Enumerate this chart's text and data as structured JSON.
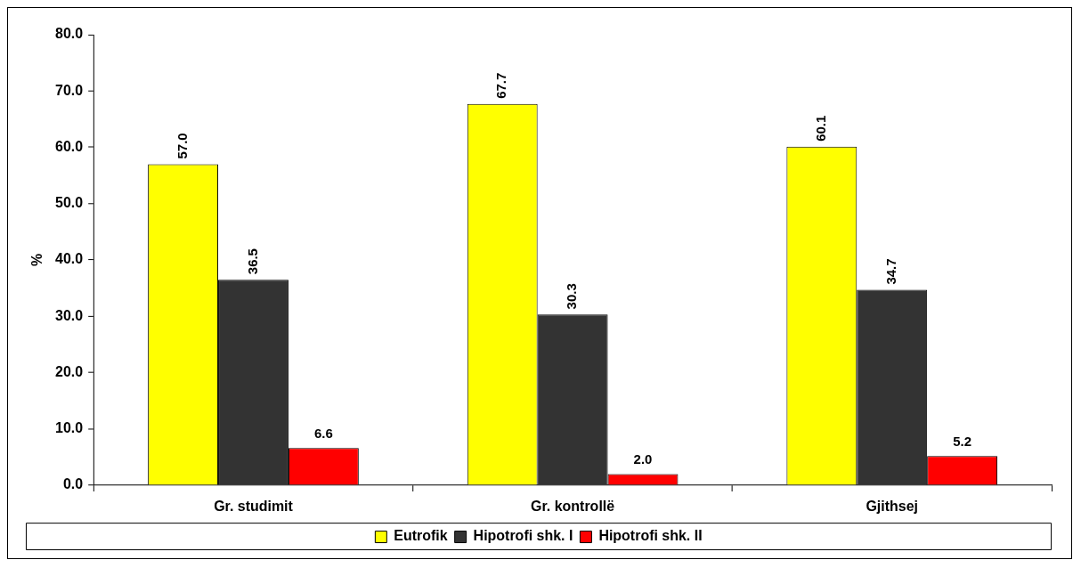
{
  "chart_data": {
    "type": "bar",
    "ylabel": "%",
    "categories": [
      "Gr. studimit",
      "Gr. kontrollë",
      "Gjithsej"
    ],
    "series": [
      {
        "name": "Eutrofik",
        "color": "#ffff00",
        "values": [
          57.0,
          67.7,
          60.1
        ],
        "value_labels": [
          "57.0",
          "67.7",
          "60.1"
        ]
      },
      {
        "name": "Hipotrofi shk. I",
        "color": "#333333",
        "values": [
          36.5,
          30.3,
          34.7
        ],
        "value_labels": [
          "36.5",
          "30.3",
          "34.7"
        ]
      },
      {
        "name": "Hipotrofi shk. II",
        "color": "#ff0000",
        "values": [
          6.6,
          2.0,
          5.2
        ],
        "value_labels": [
          "6.6",
          "2.0",
          "5.2"
        ]
      }
    ],
    "ylim": [
      0,
      80
    ],
    "yticks": [
      {
        "value": 0,
        "label": "0.0"
      },
      {
        "value": 10,
        "label": "10.0"
      },
      {
        "value": 20,
        "label": "20.0"
      },
      {
        "value": 30,
        "label": "30.0"
      },
      {
        "value": 40,
        "label": "40.0"
      },
      {
        "value": 50,
        "label": "50.0"
      },
      {
        "value": 60,
        "label": "60.0"
      },
      {
        "value": 70,
        "label": "70.0"
      },
      {
        "value": 80,
        "label": "80.0"
      }
    ],
    "grid": false,
    "legend": "bottom"
  }
}
